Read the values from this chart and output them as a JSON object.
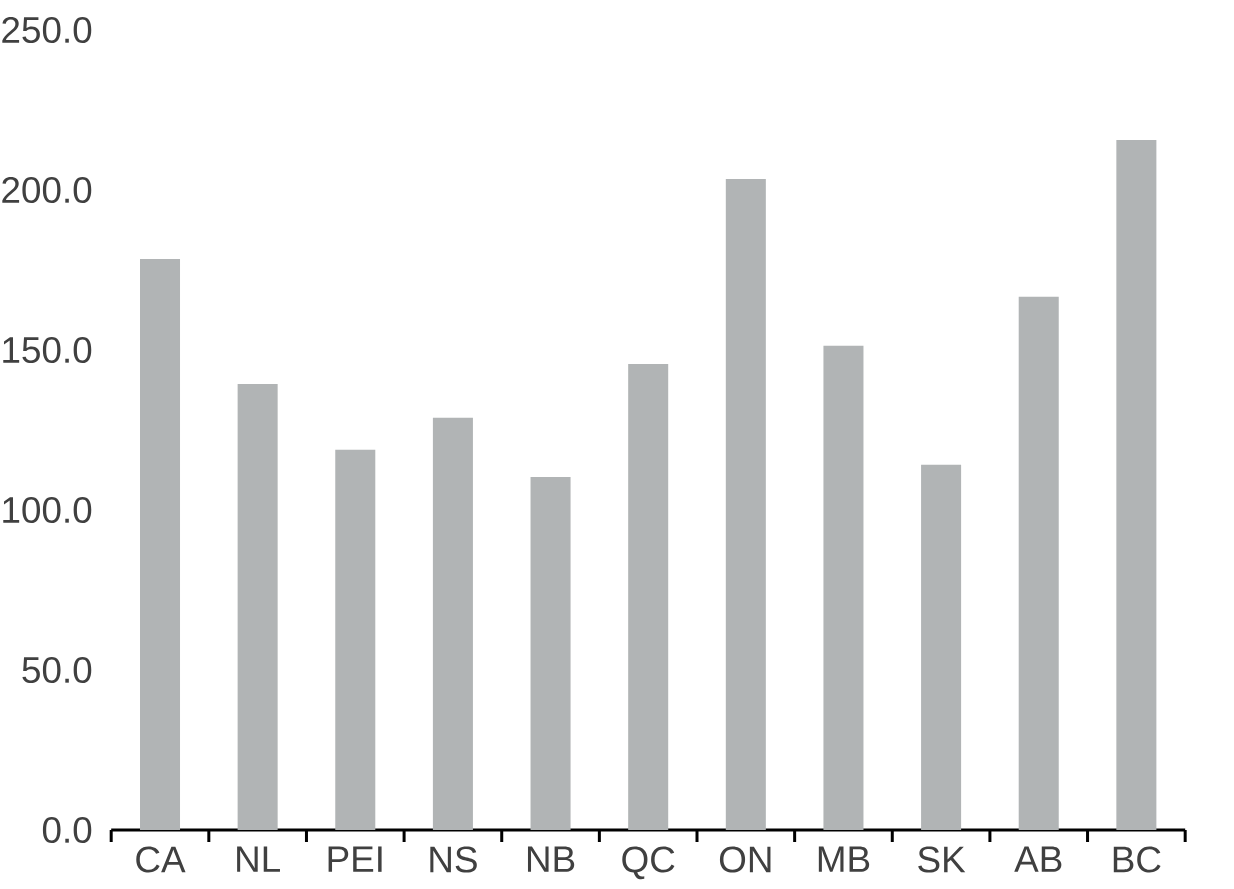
{
  "chart_data": {
    "type": "bar",
    "categories": [
      "CA",
      "NL",
      "PEI",
      "NS",
      "NB",
      "QC",
      "ON",
      "MB",
      "SK",
      "AB",
      "BC"
    ],
    "values": [
      178.4,
      139.4,
      118.8,
      128.8,
      110.3,
      145.6,
      203.4,
      151.3,
      114.1,
      166.6,
      215.6
    ],
    "color": "#b1b4b5",
    "ylim": [
      0,
      250
    ],
    "yticks": [
      {
        "value": 0,
        "label": "0.0"
      },
      {
        "value": 50,
        "label": "50.0"
      },
      {
        "value": 100,
        "label": "100.0"
      },
      {
        "value": 150,
        "label": "150.0"
      },
      {
        "value": 200,
        "label": "200.0"
      },
      {
        "value": 250,
        "label": "250.0"
      }
    ]
  }
}
